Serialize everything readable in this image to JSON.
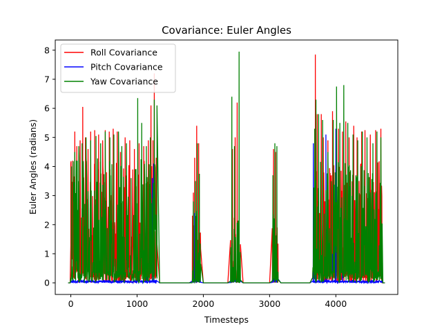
{
  "chart_data": {
    "type": "line",
    "title": "Covariance: Euler Angles",
    "xlabel": "Timesteps",
    "ylabel": "Euler Angles (radians)",
    "xlim": [
      -235,
      4935
    ],
    "ylim": [
      -0.4,
      8.35
    ],
    "xticks": [
      0,
      1000,
      2000,
      3000,
      4000
    ],
    "yticks": [
      0,
      1,
      2,
      3,
      4,
      5,
      6,
      7,
      8
    ],
    "grid": false,
    "legend": "top-left",
    "segments": [
      {
        "start": 0,
        "end": 1300,
        "dense": true
      },
      {
        "start": 1830,
        "end": 1960,
        "dense": false
      },
      {
        "start": 2410,
        "end": 2560,
        "dense": false
      },
      {
        "start": 3040,
        "end": 3130,
        "dense": false
      },
      {
        "start": 3650,
        "end": 4700,
        "dense": true
      }
    ],
    "series": [
      {
        "name": "Roll Covariance",
        "color": "#ff0000",
        "peaks": [
          [
            0,
            4.1
          ],
          [
            30,
            4.2
          ],
          [
            60,
            5.2
          ],
          [
            90,
            4.7
          ],
          [
            140,
            4.9
          ],
          [
            180,
            6.05
          ],
          [
            220,
            5.0
          ],
          [
            260,
            4.6
          ],
          [
            300,
            5.2
          ],
          [
            360,
            5.25
          ],
          [
            420,
            5.1
          ],
          [
            480,
            4.9
          ],
          [
            520,
            5.25
          ],
          [
            580,
            5.2
          ],
          [
            640,
            5.3
          ],
          [
            700,
            5.2
          ],
          [
            750,
            4.5
          ],
          [
            820,
            5.0
          ],
          [
            890,
            4.9
          ],
          [
            960,
            4.6
          ],
          [
            1030,
            4.8
          ],
          [
            1100,
            4.7
          ],
          [
            1170,
            4.9
          ],
          [
            1210,
            6.1
          ],
          [
            1240,
            4.9
          ],
          [
            1260,
            7.2
          ],
          [
            1290,
            4.3
          ],
          [
            1850,
            3.1
          ],
          [
            1870,
            4.3
          ],
          [
            1900,
            5.4
          ],
          [
            1930,
            4.8
          ],
          [
            2440,
            4.6
          ],
          [
            2480,
            5.0
          ],
          [
            2510,
            6.2
          ],
          [
            2545,
            0.6
          ],
          [
            3060,
            4.6
          ],
          [
            3090,
            4.5
          ],
          [
            3110,
            1.7
          ],
          [
            3690,
            7.85
          ],
          [
            3720,
            5.8
          ],
          [
            3780,
            5.8
          ],
          [
            3810,
            5.0
          ],
          [
            3880,
            4.9
          ],
          [
            3950,
            5.9
          ],
          [
            4040,
            5.3
          ],
          [
            4100,
            5.2
          ],
          [
            4150,
            5.55
          ],
          [
            4200,
            5.0
          ],
          [
            4270,
            5.4
          ],
          [
            4320,
            5.0
          ],
          [
            4390,
            5.2
          ],
          [
            4440,
            5.25
          ],
          [
            4520,
            5.1
          ],
          [
            4600,
            5.25
          ],
          [
            4680,
            5.3
          ]
        ]
      },
      {
        "name": "Pitch Covariance",
        "color": "#0000ff",
        "peaks": [
          [
            30,
            0.12
          ],
          [
            200,
            0.08
          ],
          [
            500,
            0.1
          ],
          [
            800,
            0.1
          ],
          [
            1000,
            0.3
          ],
          [
            1030,
            0.15
          ],
          [
            1150,
            0.2
          ],
          [
            1230,
            3.6
          ],
          [
            1250,
            4.1
          ],
          [
            1870,
            2.4
          ],
          [
            2550,
            0.55
          ],
          [
            3660,
            4.8
          ],
          [
            3690,
            0.5
          ],
          [
            3850,
            5.1
          ],
          [
            3950,
            1.0
          ],
          [
            4000,
            5.3
          ],
          [
            4100,
            0.4
          ],
          [
            4500,
            0.15
          ]
        ]
      },
      {
        "name": "Yaw Covariance",
        "color": "#008000",
        "peaks": [
          [
            10,
            4.0
          ],
          [
            60,
            4.5
          ],
          [
            120,
            4.7
          ],
          [
            170,
            4.8
          ],
          [
            230,
            5.0
          ],
          [
            300,
            4.9
          ],
          [
            380,
            5.05
          ],
          [
            450,
            4.8
          ],
          [
            520,
            5.2
          ],
          [
            590,
            5.0
          ],
          [
            650,
            5.1
          ],
          [
            720,
            5.2
          ],
          [
            770,
            4.7
          ],
          [
            840,
            4.8
          ],
          [
            910,
            3.6
          ],
          [
            1010,
            6.35
          ],
          [
            1070,
            5.5
          ],
          [
            1140,
            4.7
          ],
          [
            1200,
            5.0
          ],
          [
            1260,
            6.3
          ],
          [
            1300,
            6.1
          ],
          [
            1850,
            2.8
          ],
          [
            1880,
            3.5
          ],
          [
            1910,
            4.8
          ],
          [
            1940,
            3.75
          ],
          [
            2430,
            6.4
          ],
          [
            2470,
            4.7
          ],
          [
            2540,
            7.95
          ],
          [
            3050,
            3.7
          ],
          [
            3080,
            4.8
          ],
          [
            3110,
            4.7
          ],
          [
            3680,
            5.3
          ],
          [
            3700,
            6.3
          ],
          [
            3740,
            5.8
          ],
          [
            3800,
            5.6
          ],
          [
            3880,
            4.5
          ],
          [
            3960,
            5.6
          ],
          [
            4010,
            6.75
          ],
          [
            4060,
            5.5
          ],
          [
            4120,
            6.8
          ],
          [
            4180,
            5.5
          ],
          [
            4260,
            5.1
          ],
          [
            4330,
            4.9
          ],
          [
            4400,
            5.2
          ],
          [
            4470,
            5.0
          ],
          [
            4560,
            4.8
          ],
          [
            4620,
            5.2
          ],
          [
            4680,
            5.0
          ]
        ]
      }
    ]
  }
}
